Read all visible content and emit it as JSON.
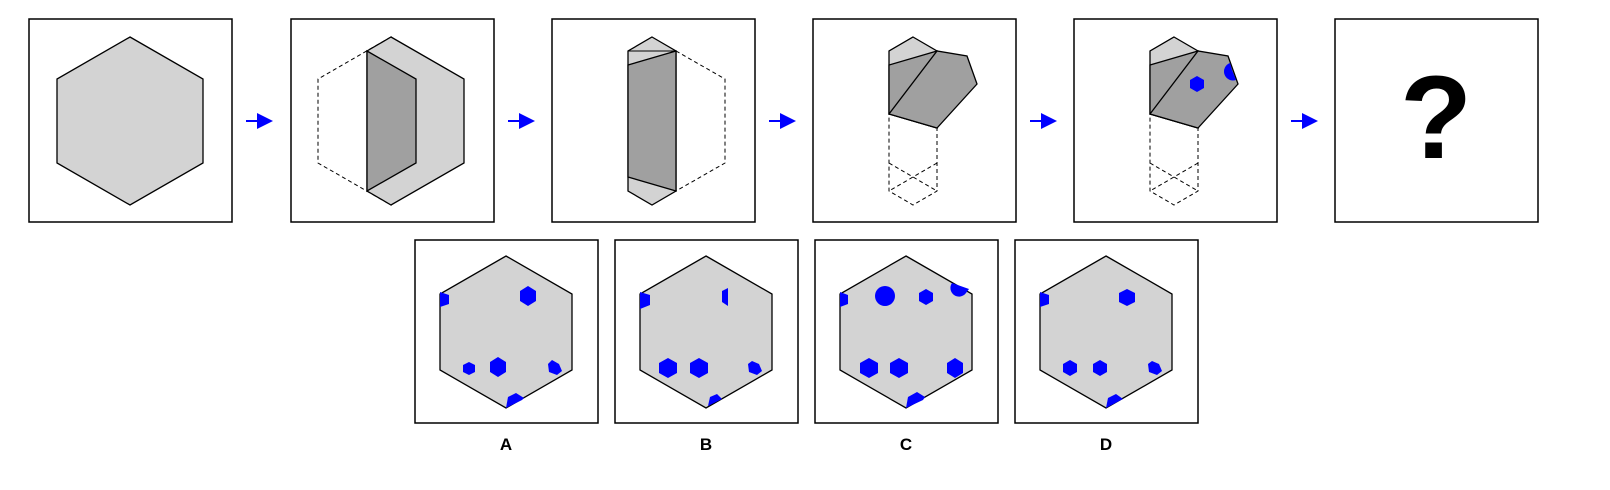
{
  "sequence": {
    "question_mark": "?"
  },
  "options": [
    {
      "label": "A"
    },
    {
      "label": "B"
    },
    {
      "label": "C"
    },
    {
      "label": "D"
    }
  ],
  "colors": {
    "paper_light": "#d3d3d3",
    "paper_folded": "#a0a0a0",
    "hole": "#0000ff",
    "arrow": "#0000ff",
    "frame": "#000000"
  }
}
